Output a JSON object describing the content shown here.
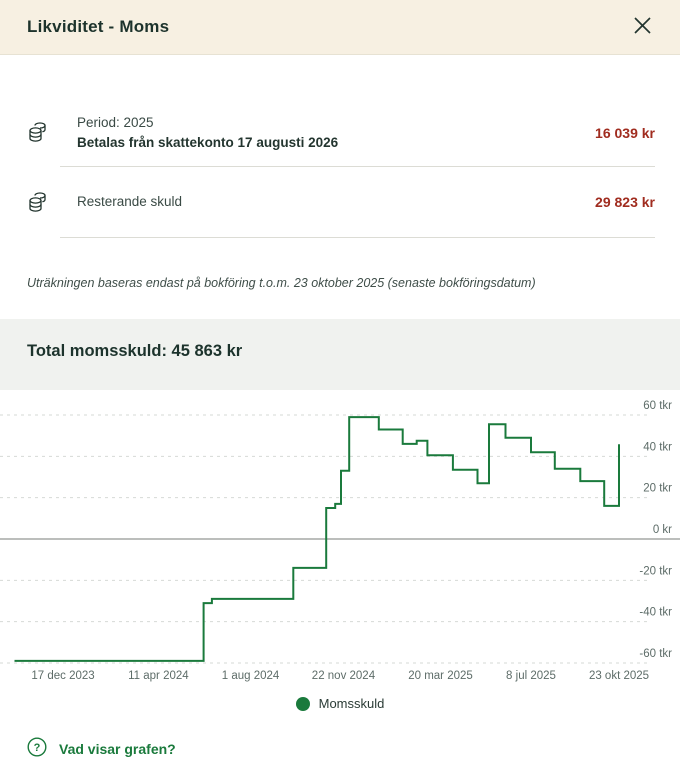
{
  "header": {
    "title": "Likviditet - Moms",
    "close_label": "Stäng"
  },
  "rows": {
    "period": {
      "icon": "coins-icon",
      "line1": "Period: 2025",
      "line2": "Betalas från skattekonto 17 augusti 2026",
      "amount": "16 039 kr"
    },
    "remaining": {
      "icon": "coins-icon",
      "line1": "Resterande skuld",
      "amount": "29 823 kr"
    }
  },
  "note": "Uträkningen baseras endast på bokföring t.o.m. 23 oktober 2025 (senaste bokföringsdatum)",
  "section": {
    "title": "Total momsskuld: 45 863 kr"
  },
  "chart_data": {
    "type": "line",
    "line_style": "step-after",
    "title": "Total momsskuld",
    "xlabel": "",
    "ylabel": "kr",
    "ylim": [
      -70000,
      70000
    ],
    "grid": "horizontal-dashed",
    "legend_position": "bottom",
    "x_ticks": [
      "17 dec 2023",
      "11 apr 2024",
      "1 aug 2024",
      "22 nov 2024",
      "20 mar 2025",
      "8 jul 2025",
      "23 okt 2025"
    ],
    "x_tick_dates": [
      "2023-12-17",
      "2024-04-11",
      "2024-08-01",
      "2024-11-22",
      "2025-03-20",
      "2025-07-08",
      "2025-10-23"
    ],
    "y_ticks": [
      {
        "value": 60000,
        "label": "60 tkr"
      },
      {
        "value": 40000,
        "label": "40 tkr"
      },
      {
        "value": 20000,
        "label": "20 tkr"
      },
      {
        "value": 0,
        "label": "0 kr"
      },
      {
        "value": -20000,
        "label": "-20 tkr"
      },
      {
        "value": -40000,
        "label": "-40 tkr"
      },
      {
        "value": -60000,
        "label": "-60 tkr"
      }
    ],
    "series": [
      {
        "name": "Momsskuld",
        "color": "#1a7a3c",
        "points": [
          [
            "2023-10-19",
            -59000
          ],
          [
            "2024-06-05",
            -31000
          ],
          [
            "2024-06-15",
            -29000
          ],
          [
            "2024-09-22",
            -14000
          ],
          [
            "2024-11-01",
            15000
          ],
          [
            "2024-11-12",
            17000
          ],
          [
            "2024-11-19",
            33000
          ],
          [
            "2024-11-29",
            59000
          ],
          [
            "2025-01-04",
            53000
          ],
          [
            "2025-02-02",
            46000
          ],
          [
            "2025-02-19",
            47500
          ],
          [
            "2025-03-04",
            40500
          ],
          [
            "2025-04-04",
            33500
          ],
          [
            "2025-05-04",
            27000
          ],
          [
            "2025-05-18",
            55500
          ],
          [
            "2025-06-07",
            49000
          ],
          [
            "2025-07-08",
            42000
          ],
          [
            "2025-08-06",
            34000
          ],
          [
            "2025-09-06",
            28000
          ],
          [
            "2025-10-05",
            16039
          ],
          [
            "2025-10-23",
            45863
          ]
        ]
      }
    ]
  },
  "legend": {
    "label": "Momsskuld"
  },
  "footer": {
    "help_label": "Vad visar grafen?"
  },
  "colors": {
    "header_bg": "#f7f0e2",
    "accent_green": "#1a7a3c",
    "amount_red": "#a02c1f",
    "band_bg": "#f0f2ef",
    "grid_dashed": "#d6dad6",
    "zero_line": "#a6a9a6",
    "axis_text": "#5d6c68"
  }
}
